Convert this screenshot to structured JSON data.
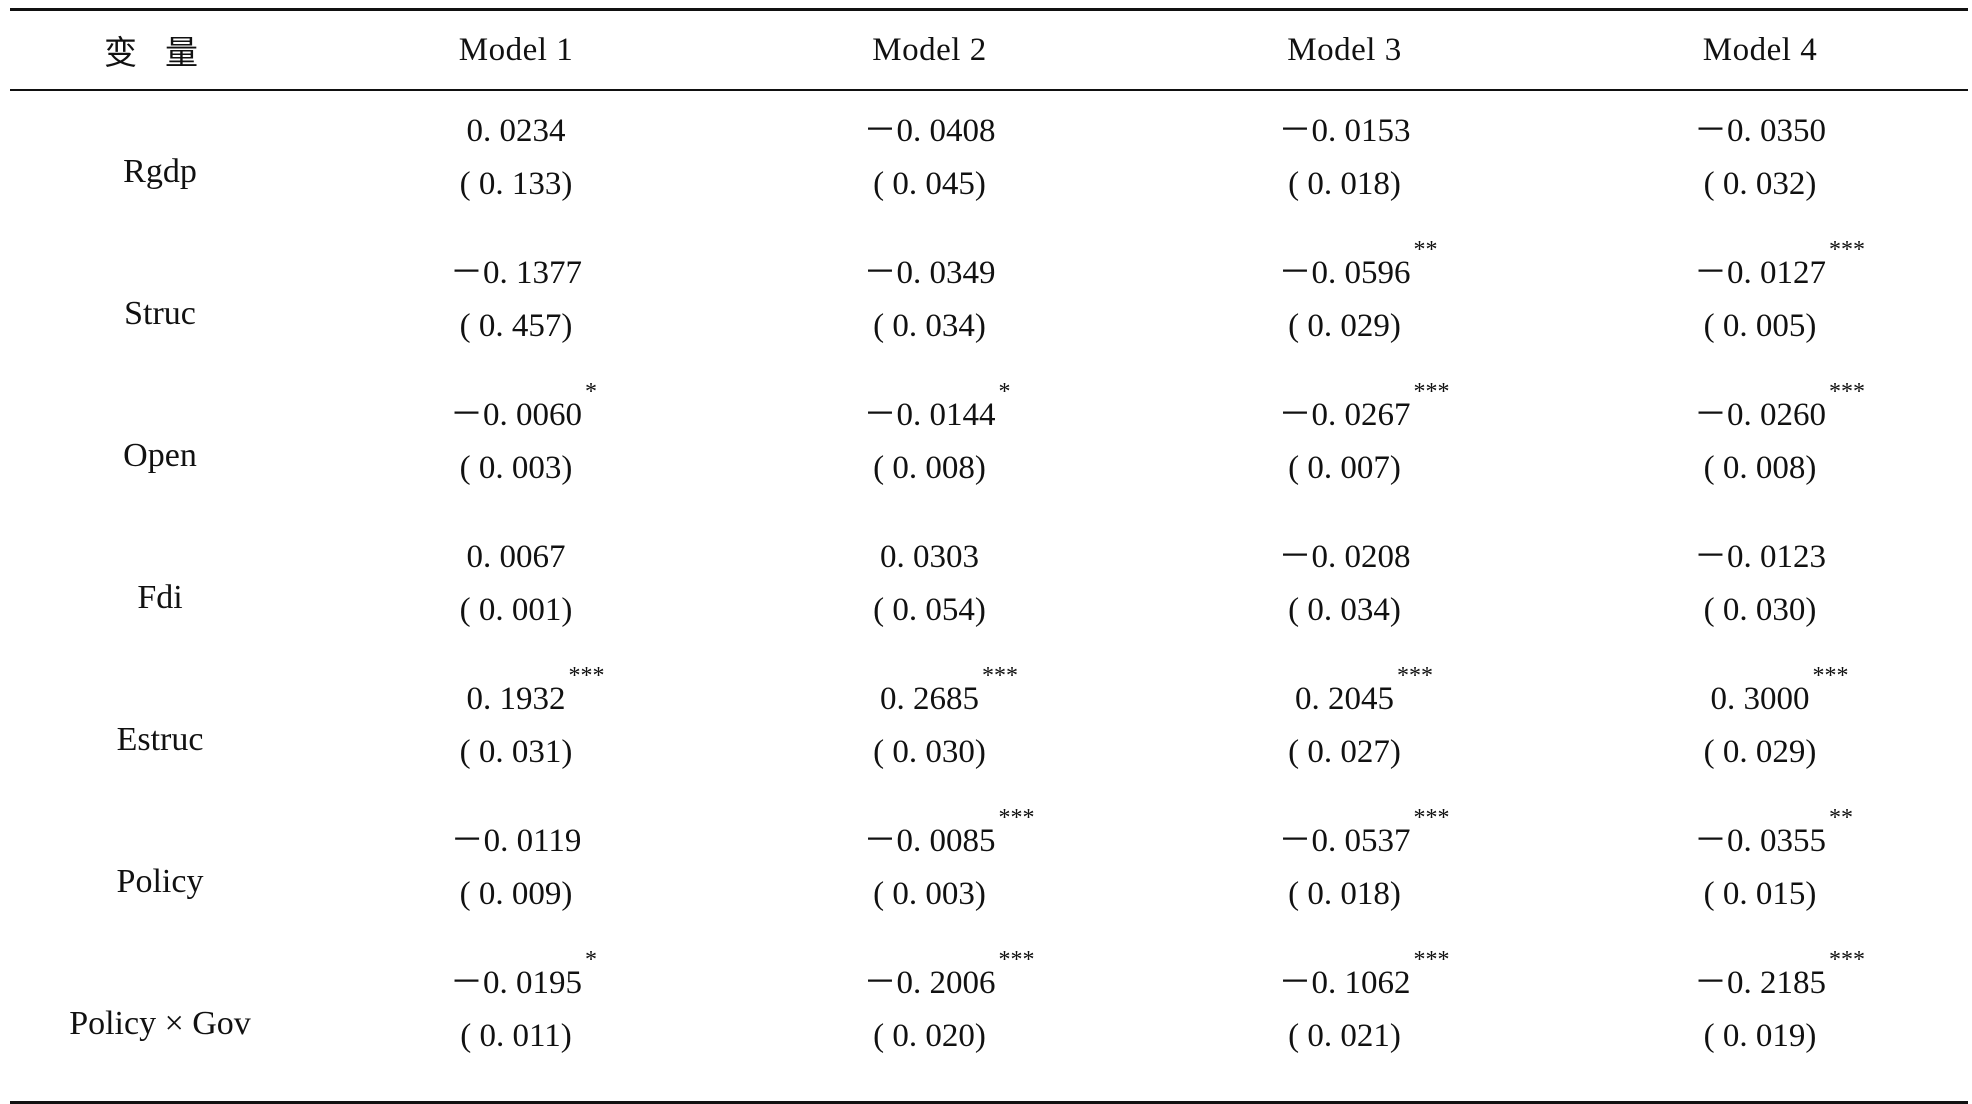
{
  "header": {
    "variable_label": "变量",
    "models": [
      "Model 1",
      "Model 2",
      "Model 3",
      "Model 4"
    ]
  },
  "rows": [
    {
      "variable": "Rgdp",
      "cells": [
        {
          "coef": "0. 0234",
          "stars": "",
          "se": "( 0. 133)"
        },
        {
          "coef": "－0. 0408",
          "stars": "",
          "se": "( 0. 045)"
        },
        {
          "coef": "－0. 0153",
          "stars": "",
          "se": "( 0. 018)"
        },
        {
          "coef": "－0. 0350",
          "stars": "",
          "se": "( 0. 032)"
        }
      ]
    },
    {
      "variable": "Struc",
      "cells": [
        {
          "coef": "－0. 1377",
          "stars": "",
          "se": "( 0. 457)"
        },
        {
          "coef": "－0. 0349",
          "stars": "",
          "se": "( 0. 034)"
        },
        {
          "coef": "－0. 0596",
          "stars": "**",
          "se": "( 0. 029)"
        },
        {
          "coef": "－0. 0127",
          "stars": "***",
          "se": "( 0. 005)"
        }
      ]
    },
    {
      "variable": "Open",
      "cells": [
        {
          "coef": "－0. 0060",
          "stars": "*",
          "se": "( 0. 003)"
        },
        {
          "coef": "－0. 0144",
          "stars": "*",
          "se": "( 0. 008)"
        },
        {
          "coef": "－0. 0267",
          "stars": "***",
          "se": "( 0. 007)"
        },
        {
          "coef": "－0. 0260",
          "stars": "***",
          "se": "( 0. 008)"
        }
      ]
    },
    {
      "variable": "Fdi",
      "cells": [
        {
          "coef": "0. 0067",
          "stars": "",
          "se": "( 0. 001)"
        },
        {
          "coef": "0. 0303",
          "stars": "",
          "se": "( 0. 054)"
        },
        {
          "coef": "－0. 0208",
          "stars": "",
          "se": "( 0. 034)"
        },
        {
          "coef": "－0. 0123",
          "stars": "",
          "se": "( 0. 030)"
        }
      ]
    },
    {
      "variable": "Estruc",
      "cells": [
        {
          "coef": "0. 1932",
          "stars": "***",
          "se": "( 0. 031)"
        },
        {
          "coef": "0. 2685",
          "stars": "***",
          "se": "( 0. 030)"
        },
        {
          "coef": "0. 2045",
          "stars": "***",
          "se": "( 0. 027)"
        },
        {
          "coef": "0. 3000",
          "stars": "***",
          "se": "( 0. 029)"
        }
      ]
    },
    {
      "variable": "Policy",
      "cells": [
        {
          "coef": "－0. 0119",
          "stars": "",
          "se": "( 0. 009)"
        },
        {
          "coef": "－0. 0085",
          "stars": "***",
          "se": "( 0. 003)"
        },
        {
          "coef": "－0. 0537",
          "stars": "***",
          "se": "( 0. 018)"
        },
        {
          "coef": "－0. 0355",
          "stars": "**",
          "se": "( 0. 015)"
        }
      ]
    },
    {
      "variable": "Policy × Gov",
      "cells": [
        {
          "coef": "－0. 0195",
          "stars": "*",
          "se": "( 0. 011)"
        },
        {
          "coef": "－0. 2006",
          "stars": "***",
          "se": "( 0. 020)"
        },
        {
          "coef": "－0. 1062",
          "stars": "***",
          "se": "( 0. 021)"
        },
        {
          "coef": "－0. 2185",
          "stars": "***",
          "se": "( 0. 019)"
        }
      ]
    }
  ]
}
